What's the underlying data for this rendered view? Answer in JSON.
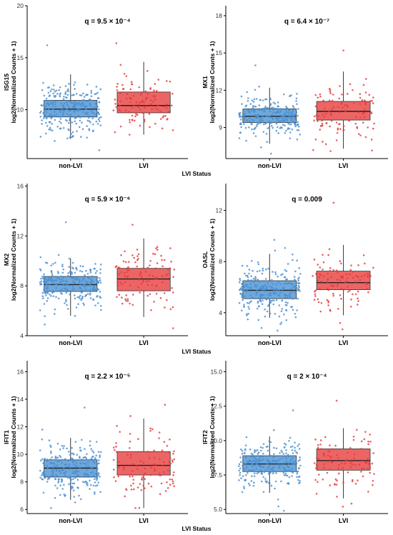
{
  "figure": {
    "shared_xlabel": "LVI Status",
    "colors": {
      "non_lvi_box": "#6fa8dc",
      "non_lvi_points": "#4a8fd0",
      "lvi_box": "#ec6565",
      "lvi_points": "#e33b3b",
      "median_line": "#222222",
      "axis": "#000000"
    }
  },
  "chart_data": [
    {
      "type": "box",
      "gene": "ISG15",
      "ylabel": "log2(Normalized Counts + 1)",
      "annotation": "q = 9.5 × 10⁻⁴",
      "categories": [
        "non-LVI",
        "LVI"
      ],
      "ylim": [
        5.3,
        20
      ],
      "yticks": [
        10,
        15,
        20
      ],
      "series": [
        {
          "name": "non-LVI",
          "min": 7.2,
          "q1": 9.3,
          "median": 10.05,
          "q3": 10.9,
          "max": 13.4,
          "n": 270,
          "points_range": [
            6.1,
            16.2
          ]
        },
        {
          "name": "LVI",
          "min": 7.6,
          "q1": 9.7,
          "median": 10.4,
          "q3": 11.7,
          "max": 14.6,
          "n": 110,
          "points_range": [
            7.6,
            16.4
          ]
        }
      ]
    },
    {
      "type": "box",
      "gene": "MX1",
      "ylabel": "log2(Normalized Counts + 1)",
      "annotation": "q = 6.4 × 10⁻⁷",
      "categories": [
        "non-LVI",
        "LVI"
      ],
      "ylim": [
        6.5,
        18.8
      ],
      "yticks": [
        9,
        12,
        15,
        18
      ],
      "series": [
        {
          "name": "non-LVI",
          "min": 7.7,
          "q1": 9.4,
          "median": 9.9,
          "q3": 10.5,
          "max": 12.2,
          "n": 270,
          "points_range": [
            6.9,
            14
          ]
        },
        {
          "name": "LVI",
          "min": 7.3,
          "q1": 9.6,
          "median": 10.3,
          "q3": 11.1,
          "max": 13.5,
          "n": 110,
          "points_range": [
            7.1,
            15.2
          ]
        }
      ]
    },
    {
      "type": "box",
      "gene": "MX2",
      "ylabel": "log2(Normalized Counts + 1)",
      "annotation": "q = 5.9 × 10⁻⁶",
      "categories": [
        "non-LVI",
        "LVI"
      ],
      "ylim": [
        4,
        16.2
      ],
      "yticks": [
        4,
        8,
        12,
        16
      ],
      "series": [
        {
          "name": "non-LVI",
          "min": 5.6,
          "q1": 7.55,
          "median": 8.1,
          "q3": 8.75,
          "max": 10.2,
          "n": 270,
          "points_range": [
            4.9,
            13.1
          ]
        },
        {
          "name": "LVI",
          "min": 5.5,
          "q1": 7.6,
          "median": 8.55,
          "q3": 9.4,
          "max": 11.8,
          "n": 110,
          "points_range": [
            4.6,
            12.9
          ]
        }
      ]
    },
    {
      "type": "box",
      "gene": "OASL",
      "ylabel": "log2(Normalized Counts + 1)",
      "annotation": "q = 0.009",
      "categories": [
        "non-LVI",
        "LVI"
      ],
      "ylim": [
        2.2,
        14.1
      ],
      "yticks": [
        4,
        8,
        12
      ],
      "series": [
        {
          "name": "non-LVI",
          "min": 3.6,
          "q1": 5.1,
          "median": 5.75,
          "q3": 6.5,
          "max": 8.6,
          "n": 270,
          "points_range": [
            2.6,
            9.7
          ]
        },
        {
          "name": "LVI",
          "min": 3.8,
          "q1": 5.8,
          "median": 6.35,
          "q3": 7.25,
          "max": 9.3,
          "n": 110,
          "points_range": [
            2.7,
            12.6
          ]
        }
      ]
    },
    {
      "type": "box",
      "gene": "IFIT1",
      "ylabel": "log2(Normalized Counts + 1)",
      "annotation": "q = 2.2 × 10⁻⁵",
      "categories": [
        "non-LVI",
        "LVI"
      ],
      "ylim": [
        5.7,
        16.8
      ],
      "yticks": [
        6,
        8,
        10,
        12,
        14,
        16
      ],
      "series": [
        {
          "name": "non-LVI",
          "min": 6.7,
          "q1": 8.35,
          "median": 9.0,
          "q3": 9.6,
          "max": 11.2,
          "n": 270,
          "points_range": [
            6.1,
            13.4
          ]
        },
        {
          "name": "LVI",
          "min": 6.1,
          "q1": 8.5,
          "median": 9.2,
          "q3": 10.2,
          "max": 12.6,
          "n": 110,
          "points_range": [
            6.1,
            13.6
          ]
        }
      ]
    },
    {
      "type": "box",
      "gene": "IFIT2",
      "ylabel": "log2(Normalized Counts + 1)",
      "annotation": "q = 2 × 10⁻⁴",
      "categories": [
        "non-LVI",
        "LVI"
      ],
      "ylim": [
        4.7,
        15.8
      ],
      "yticks": [
        5.0,
        7.5,
        10.0,
        12.5,
        15.0
      ],
      "series": [
        {
          "name": "non-LVI",
          "min": 6.2,
          "q1": 7.75,
          "median": 8.3,
          "q3": 8.9,
          "max": 10.3,
          "n": 270,
          "points_range": [
            4.9,
            12.2
          ]
        },
        {
          "name": "LVI",
          "min": 5.8,
          "q1": 7.85,
          "median": 8.55,
          "q3": 9.4,
          "max": 10.9,
          "n": 110,
          "points_range": [
            5.2,
            12.9
          ]
        }
      ]
    }
  ]
}
